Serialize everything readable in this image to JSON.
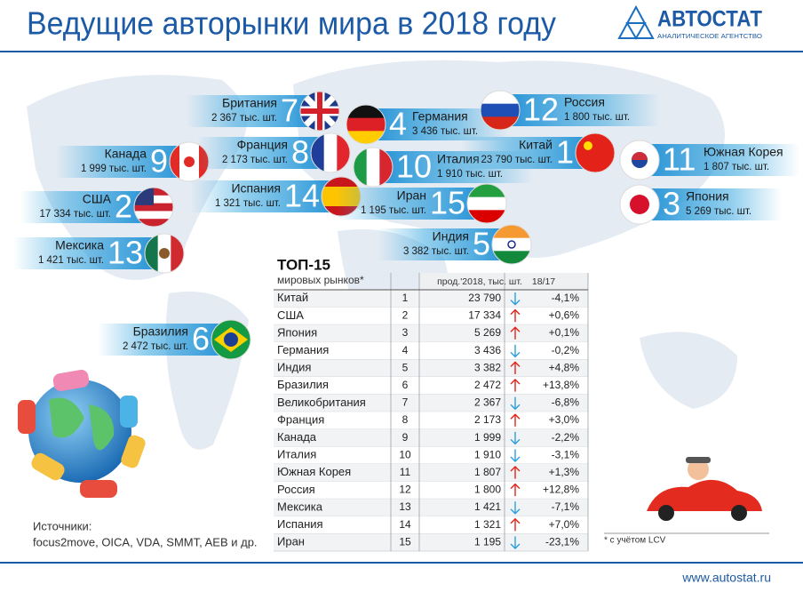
{
  "header": {
    "title": "Ведущие авторынки мира в 2018 году",
    "logo": "АВТОСТАТ",
    "logo_subtitle": "АНАЛИТИЧЕСКОЕ АГЕНТСТВО"
  },
  "map_labels": [
    {
      "name": "Британия",
      "rank": "7",
      "sales": "2 367 тыс. шт."
    },
    {
      "name": "Германия",
      "rank": "4",
      "sales": "3 436 тыс. шт."
    },
    {
      "name": "Россия",
      "rank": "12",
      "sales": "1 800 тыс. шт."
    },
    {
      "name": "Канада",
      "rank": "9",
      "sales": "1 999 тыс. шт."
    },
    {
      "name": "Франция",
      "rank": "8",
      "sales": "2 173 тыс. шт."
    },
    {
      "name": "Италия",
      "rank": "10",
      "sales": "1 910 тыс. шт."
    },
    {
      "name": "Китай",
      "rank": "1",
      "sales": "23 790 тыс. шт."
    },
    {
      "name": "Южная Корея",
      "rank": "11",
      "sales": "1 807 тыс. шт."
    },
    {
      "name": "США",
      "rank": "2",
      "sales": "17 334 тыс. шт."
    },
    {
      "name": "Испания",
      "rank": "14",
      "sales": "1 321 тыс. шт."
    },
    {
      "name": "Иран",
      "rank": "15",
      "sales": "1 195 тыс. шт."
    },
    {
      "name": "Япония",
      "rank": "3",
      "sales": "5 269 тыс. шт."
    },
    {
      "name": "Мексика",
      "rank": "13",
      "sales": "1 421 тыс. шт."
    },
    {
      "name": "Индия",
      "rank": "5",
      "sales": "3 382 тыс. шт."
    },
    {
      "name": "Бразилия",
      "rank": "6",
      "sales": "2 472 тыс. шт."
    }
  ],
  "table": {
    "title": "ТОП-15",
    "subtitle": "мировых рынков*",
    "columns": [
      "прод.'2018, тыс. шт.",
      "18/17"
    ],
    "rows": [
      [
        "Китай",
        "1",
        "23 790",
        "-4,1%"
      ],
      [
        "США",
        "2",
        "17 334",
        "+0,6%"
      ],
      [
        "Япония",
        "3",
        "5 269",
        "+0,1%"
      ],
      [
        "Германия",
        "4",
        "3 436",
        "-0,2%"
      ],
      [
        "Индия",
        "5",
        "3 382",
        "+4,8%"
      ],
      [
        "Бразилия",
        "6",
        "2 472",
        "+13,8%"
      ],
      [
        "Великобритания",
        "7",
        "2 367",
        "-6,8%"
      ],
      [
        "Франция",
        "8",
        "2 173",
        "+3,0%"
      ],
      [
        "Канада",
        "9",
        "1 999",
        "-2,2%"
      ],
      [
        "Италия",
        "10",
        "1 910",
        "-3,1%"
      ],
      [
        "Южная Корея",
        "11",
        "1 807",
        "+1,3%"
      ],
      [
        "Россия",
        "12",
        "1 800",
        "+12,8%"
      ],
      [
        "Мексика",
        "13",
        "1 421",
        "-7,1%"
      ],
      [
        "Испания",
        "14",
        "1 321",
        "+7,0%"
      ],
      [
        "Иран",
        "15",
        "1 195",
        "-23,1%"
      ]
    ]
  },
  "footnote": "* с учётом LCV",
  "sources": {
    "label": "Источники:",
    "text": "focus2move, OICA, VDA, SMMT, AEB и др."
  },
  "footer": {
    "url": "www.autostat.ru"
  }
}
